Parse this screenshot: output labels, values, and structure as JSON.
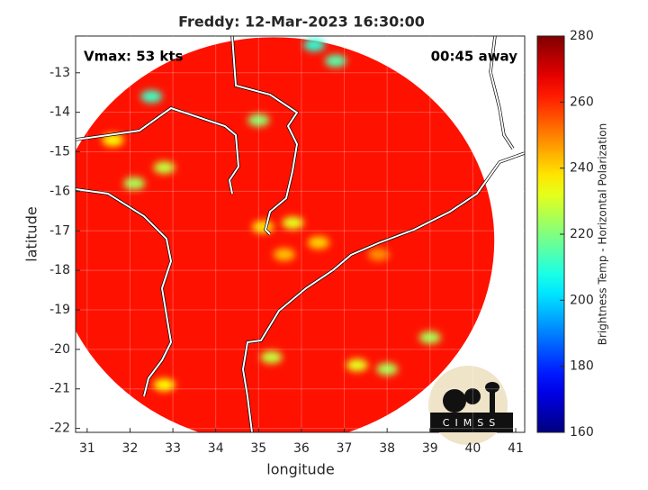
{
  "chart_data": {
    "type": "swath-map",
    "title": "Freddy: 12-Mar-2023 16:30:00",
    "annotations": [
      "Vmax: 53 kts",
      "00:45 away"
    ],
    "x_label": "longitude",
    "y_label": "latitude",
    "xlim": [
      30.73,
      41.21
    ],
    "ylim": [
      -22.1,
      -12.07
    ],
    "xticks": [
      31,
      32,
      33,
      34,
      35,
      36,
      37,
      38,
      39,
      40,
      41
    ],
    "yticks": [
      -13,
      -14,
      -15,
      -16,
      -17,
      -18,
      -19,
      -20,
      -21,
      -22
    ],
    "grid": true,
    "swath": {
      "lon": 35.35,
      "lat": -17.25,
      "radius": 5.15,
      "value": 263
    },
    "spots": [
      {
        "lon": 32.5,
        "lat": -13.6,
        "value": 212
      },
      {
        "lon": 36.3,
        "lat": -12.3,
        "value": 210
      },
      {
        "lon": 36.8,
        "lat": -12.7,
        "value": 215
      },
      {
        "lon": 35.0,
        "lat": -14.2,
        "value": 222
      },
      {
        "lon": 31.6,
        "lat": -14.7,
        "value": 235
      },
      {
        "lon": 32.8,
        "lat": -15.4,
        "value": 228
      },
      {
        "lon": 32.1,
        "lat": -15.8,
        "value": 225
      },
      {
        "lon": 35.1,
        "lat": -16.9,
        "value": 238
      },
      {
        "lon": 35.8,
        "lat": -16.8,
        "value": 232
      },
      {
        "lon": 36.4,
        "lat": -17.3,
        "value": 240
      },
      {
        "lon": 35.6,
        "lat": -17.6,
        "value": 242
      },
      {
        "lon": 37.8,
        "lat": -17.6,
        "value": 248
      },
      {
        "lon": 35.3,
        "lat": -20.2,
        "value": 228
      },
      {
        "lon": 38.0,
        "lat": -20.5,
        "value": 225
      },
      {
        "lon": 37.3,
        "lat": -20.4,
        "value": 232
      },
      {
        "lon": 39.0,
        "lat": -19.7,
        "value": 225
      },
      {
        "lon": 32.8,
        "lat": -20.9,
        "value": 235
      }
    ],
    "colorbar": {
      "label": "Brightness Temp - Horizontal Polarization",
      "clim": [
        160,
        280
      ],
      "ticks": [
        160,
        180,
        200,
        220,
        240,
        260,
        280
      ],
      "colormap": "jet"
    },
    "logo": "CIMSS"
  }
}
